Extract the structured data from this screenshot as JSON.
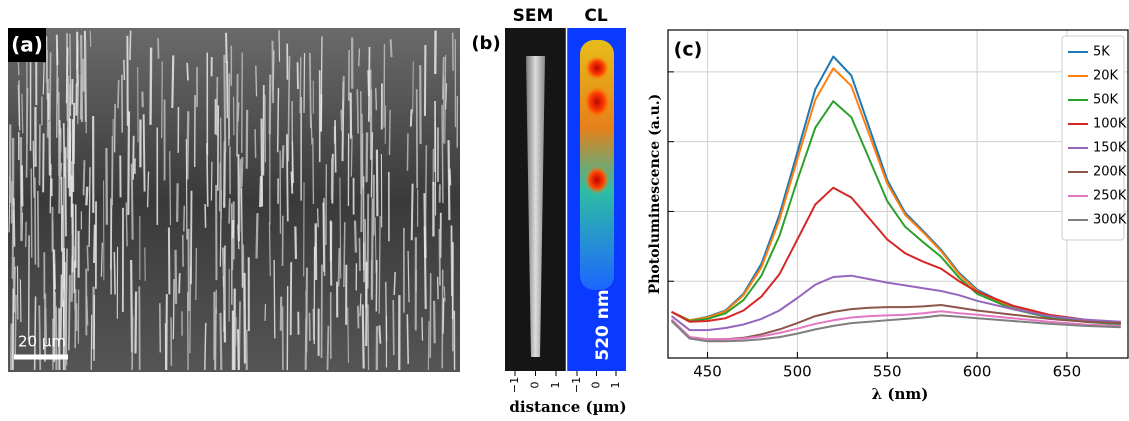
{
  "panel_a": {
    "label": "(a)",
    "scale_bar": "20 µm"
  },
  "panel_b": {
    "label": "(b)",
    "sem_title": "SEM",
    "cl_title": "CL",
    "wavelength_label": "520 nm",
    "x_label": "distance (µm)",
    "xticks": [
      {
        "value": -1,
        "label": "−1"
      },
      0,
      1
    ]
  },
  "chart_data": {
    "type": "line",
    "panel_label": "(c)",
    "x_label": "λ (nm)",
    "y_label": "Photoluminescence (a.u.)",
    "x": [
      430,
      440,
      450,
      460,
      470,
      480,
      490,
      500,
      510,
      520,
      530,
      540,
      550,
      560,
      570,
      580,
      590,
      600,
      620,
      640,
      660,
      680
    ],
    "xlim": [
      428,
      684
    ],
    "xticks": [
      450,
      500,
      550,
      600,
      650
    ],
    "ylim": [
      -0.1,
      4.6
    ],
    "yticks": [
      1,
      2,
      3,
      4
    ],
    "ytick_labels_shown": false,
    "grid": true,
    "legend": "upper right",
    "series": [
      {
        "name": "5K",
        "color": "#1f77b4",
        "values": [
          0.56,
          0.44,
          0.49,
          0.58,
          0.82,
          1.25,
          1.95,
          2.85,
          3.75,
          4.22,
          3.95,
          3.2,
          2.45,
          1.98,
          1.72,
          1.45,
          1.12,
          0.88,
          0.62,
          0.5,
          0.44,
          0.4
        ]
      },
      {
        "name": "20K",
        "color": "#ff7f0e",
        "values": [
          0.56,
          0.44,
          0.48,
          0.57,
          0.8,
          1.2,
          1.88,
          2.75,
          3.6,
          4.05,
          3.8,
          3.1,
          2.4,
          1.95,
          1.7,
          1.43,
          1.1,
          0.86,
          0.61,
          0.5,
          0.44,
          0.4
        ]
      },
      {
        "name": "50K",
        "color": "#2ca02c",
        "values": [
          0.56,
          0.43,
          0.46,
          0.54,
          0.73,
          1.08,
          1.65,
          2.45,
          3.2,
          3.58,
          3.35,
          2.75,
          2.15,
          1.78,
          1.56,
          1.35,
          1.05,
          0.82,
          0.6,
          0.48,
          0.42,
          0.38
        ]
      },
      {
        "name": "100K",
        "color": "#d62728",
        "values": [
          0.56,
          0.42,
          0.43,
          0.47,
          0.58,
          0.78,
          1.1,
          1.6,
          2.1,
          2.34,
          2.2,
          1.9,
          1.6,
          1.4,
          1.28,
          1.18,
          1.0,
          0.85,
          0.65,
          0.52,
          0.45,
          0.4
        ]
      },
      {
        "name": "150K",
        "color": "#9467bd",
        "values": [
          0.5,
          0.3,
          0.3,
          0.33,
          0.38,
          0.46,
          0.58,
          0.76,
          0.95,
          1.06,
          1.08,
          1.03,
          0.98,
          0.94,
          0.9,
          0.86,
          0.8,
          0.72,
          0.6,
          0.5,
          0.45,
          0.42
        ]
      },
      {
        "name": "200K",
        "color": "#8c564b",
        "values": [
          0.45,
          0.2,
          0.17,
          0.17,
          0.19,
          0.24,
          0.31,
          0.4,
          0.5,
          0.56,
          0.6,
          0.62,
          0.63,
          0.63,
          0.64,
          0.66,
          0.62,
          0.58,
          0.52,
          0.46,
          0.42,
          0.4
        ]
      },
      {
        "name": "250K",
        "color": "#e377c2",
        "values": [
          0.45,
          0.2,
          0.17,
          0.17,
          0.18,
          0.21,
          0.26,
          0.32,
          0.39,
          0.44,
          0.48,
          0.5,
          0.51,
          0.52,
          0.54,
          0.57,
          0.54,
          0.52,
          0.47,
          0.42,
          0.38,
          0.36
        ]
      },
      {
        "name": "300K",
        "color": "#7f7f7f",
        "values": [
          0.43,
          0.18,
          0.14,
          0.14,
          0.15,
          0.17,
          0.2,
          0.25,
          0.31,
          0.36,
          0.4,
          0.42,
          0.44,
          0.46,
          0.48,
          0.51,
          0.49,
          0.47,
          0.43,
          0.39,
          0.36,
          0.34
        ]
      }
    ]
  }
}
